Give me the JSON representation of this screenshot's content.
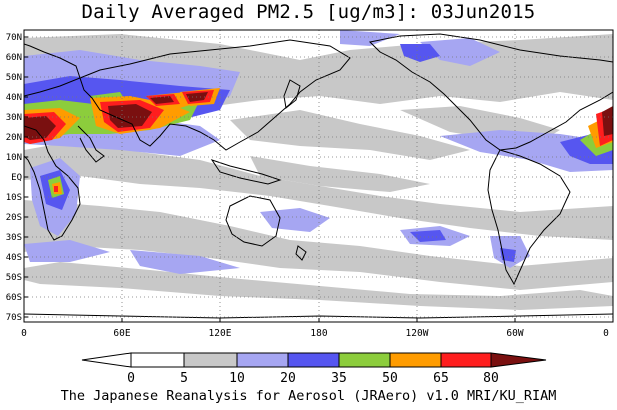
{
  "title": "Daily Averaged PM2.5 [ug/m3]: 03Jun2015",
  "credit": "The Japanese Reanalysis for Aerosol (JRAero) v1.0 MRI/KU_RIAM",
  "lat_labels": [
    "70N",
    "60N",
    "50N",
    "40N",
    "30N",
    "20N",
    "10N",
    "EQ",
    "10S",
    "20S",
    "30S",
    "40S",
    "50S",
    "60S",
    "70S"
  ],
  "lon_labels": [
    "0",
    "60E",
    "120E",
    "180",
    "120W",
    "60W",
    "0"
  ],
  "colorbar": {
    "labels": [
      "0",
      "5",
      "10",
      "20",
      "35",
      "50",
      "65",
      "80"
    ],
    "colors": [
      "#ffffff",
      "#c8c8c8",
      "#a6a6f2",
      "#5656f0",
      "#8ccd3c",
      "#ff9c00",
      "#ff1e1e",
      "#7a1010"
    ]
  }
}
